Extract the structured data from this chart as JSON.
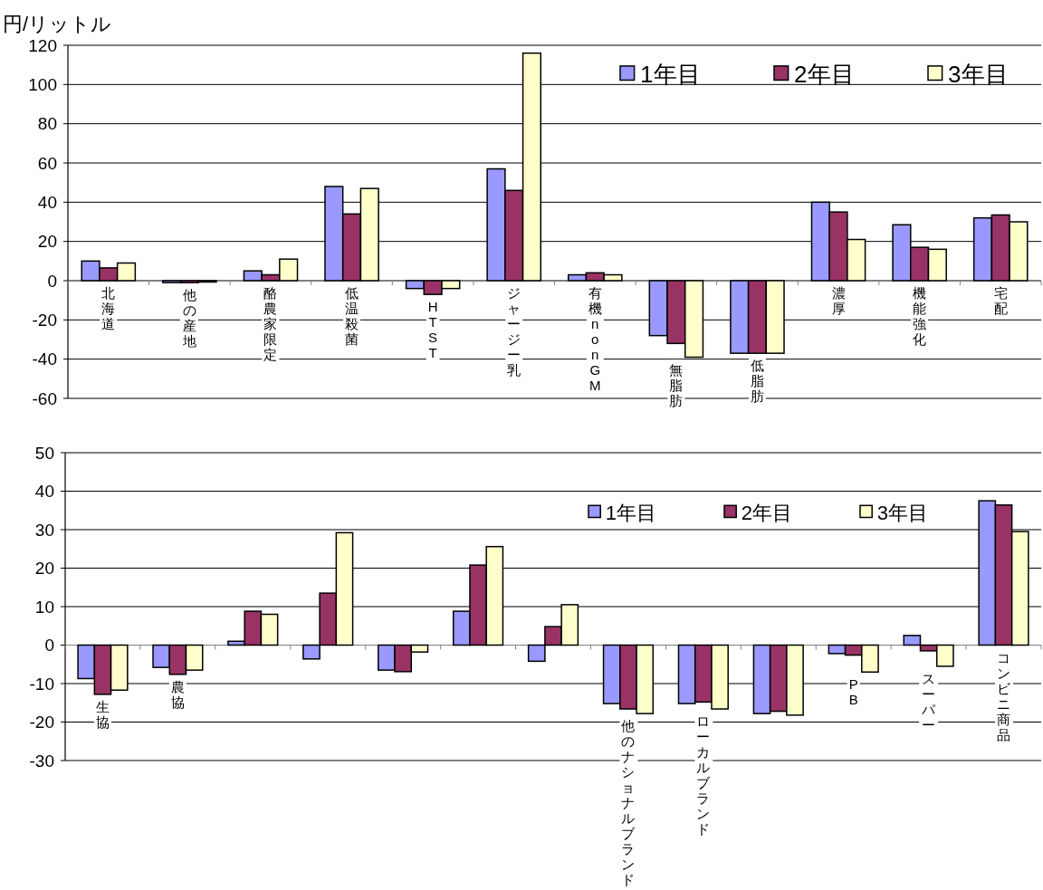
{
  "chart_data": [
    {
      "type": "bar",
      "ylabel": "円/リットル",
      "categories": [
        "北海道",
        "他の産地",
        "酪農家限定",
        "低温殺菌",
        "HTST",
        "ジャージー乳",
        "有機nonGM",
        "無脂肪",
        "低脂肪",
        "濃厚",
        "機能強化",
        "宅配"
      ],
      "series": [
        {
          "name": "1年目",
          "color": "#9999ff",
          "values": [
            10,
            -1,
            5,
            48,
            -4,
            57,
            3,
            -28,
            -37,
            40,
            28.5,
            32
          ]
        },
        {
          "name": "2年目",
          "color": "#993366",
          "values": [
            6.5,
            -1,
            3,
            34,
            -7,
            46,
            4,
            -32,
            -37,
            35,
            17,
            33.5
          ]
        },
        {
          "name": "3年目",
          "color": "#ffffcc",
          "values": [
            9,
            0,
            11,
            47,
            -4,
            116,
            3,
            -39,
            -37,
            21,
            16,
            30
          ]
        }
      ],
      "ylim": [
        -60,
        120
      ],
      "yticks": [
        -60,
        -40,
        -20,
        0,
        20,
        40,
        60,
        80,
        100,
        120
      ],
      "grid": "y",
      "legend": "top right"
    },
    {
      "type": "bar",
      "categories": [
        "生協",
        "農協",
        null,
        null,
        null,
        null,
        null,
        "他のナショナルブランド",
        "ローカルブランド",
        null,
        "PB",
        "スーパー",
        "コンビニ商品"
      ],
      "series": [
        {
          "name": "1年目",
          "color": "#9999ff",
          "values": [
            -8.7,
            -5.8,
            1,
            -3.6,
            -6.5,
            8.8,
            -4.2,
            -15.2,
            -15.2,
            -17.8,
            -2.2,
            2.5,
            37.5
          ]
        },
        {
          "name": "2年目",
          "color": "#993366",
          "values": [
            -12.8,
            -7.6,
            8.8,
            13.5,
            -6.9,
            20.8,
            4.8,
            -16.6,
            -14.8,
            -17.2,
            -2.6,
            -1.5,
            36.4
          ]
        },
        {
          "name": "3年目",
          "color": "#ffffcc",
          "values": [
            -11.7,
            -6.5,
            8,
            29.2,
            -1.8,
            25.6,
            10.5,
            -17.8,
            -16.6,
            -18.2,
            -7,
            -5.5,
            29.5
          ]
        }
      ],
      "ylim": [
        -30,
        50
      ],
      "yticks": [
        -30,
        -20,
        -10,
        0,
        10,
        20,
        30,
        40,
        50
      ],
      "grid": "y",
      "legend": "top right"
    }
  ]
}
